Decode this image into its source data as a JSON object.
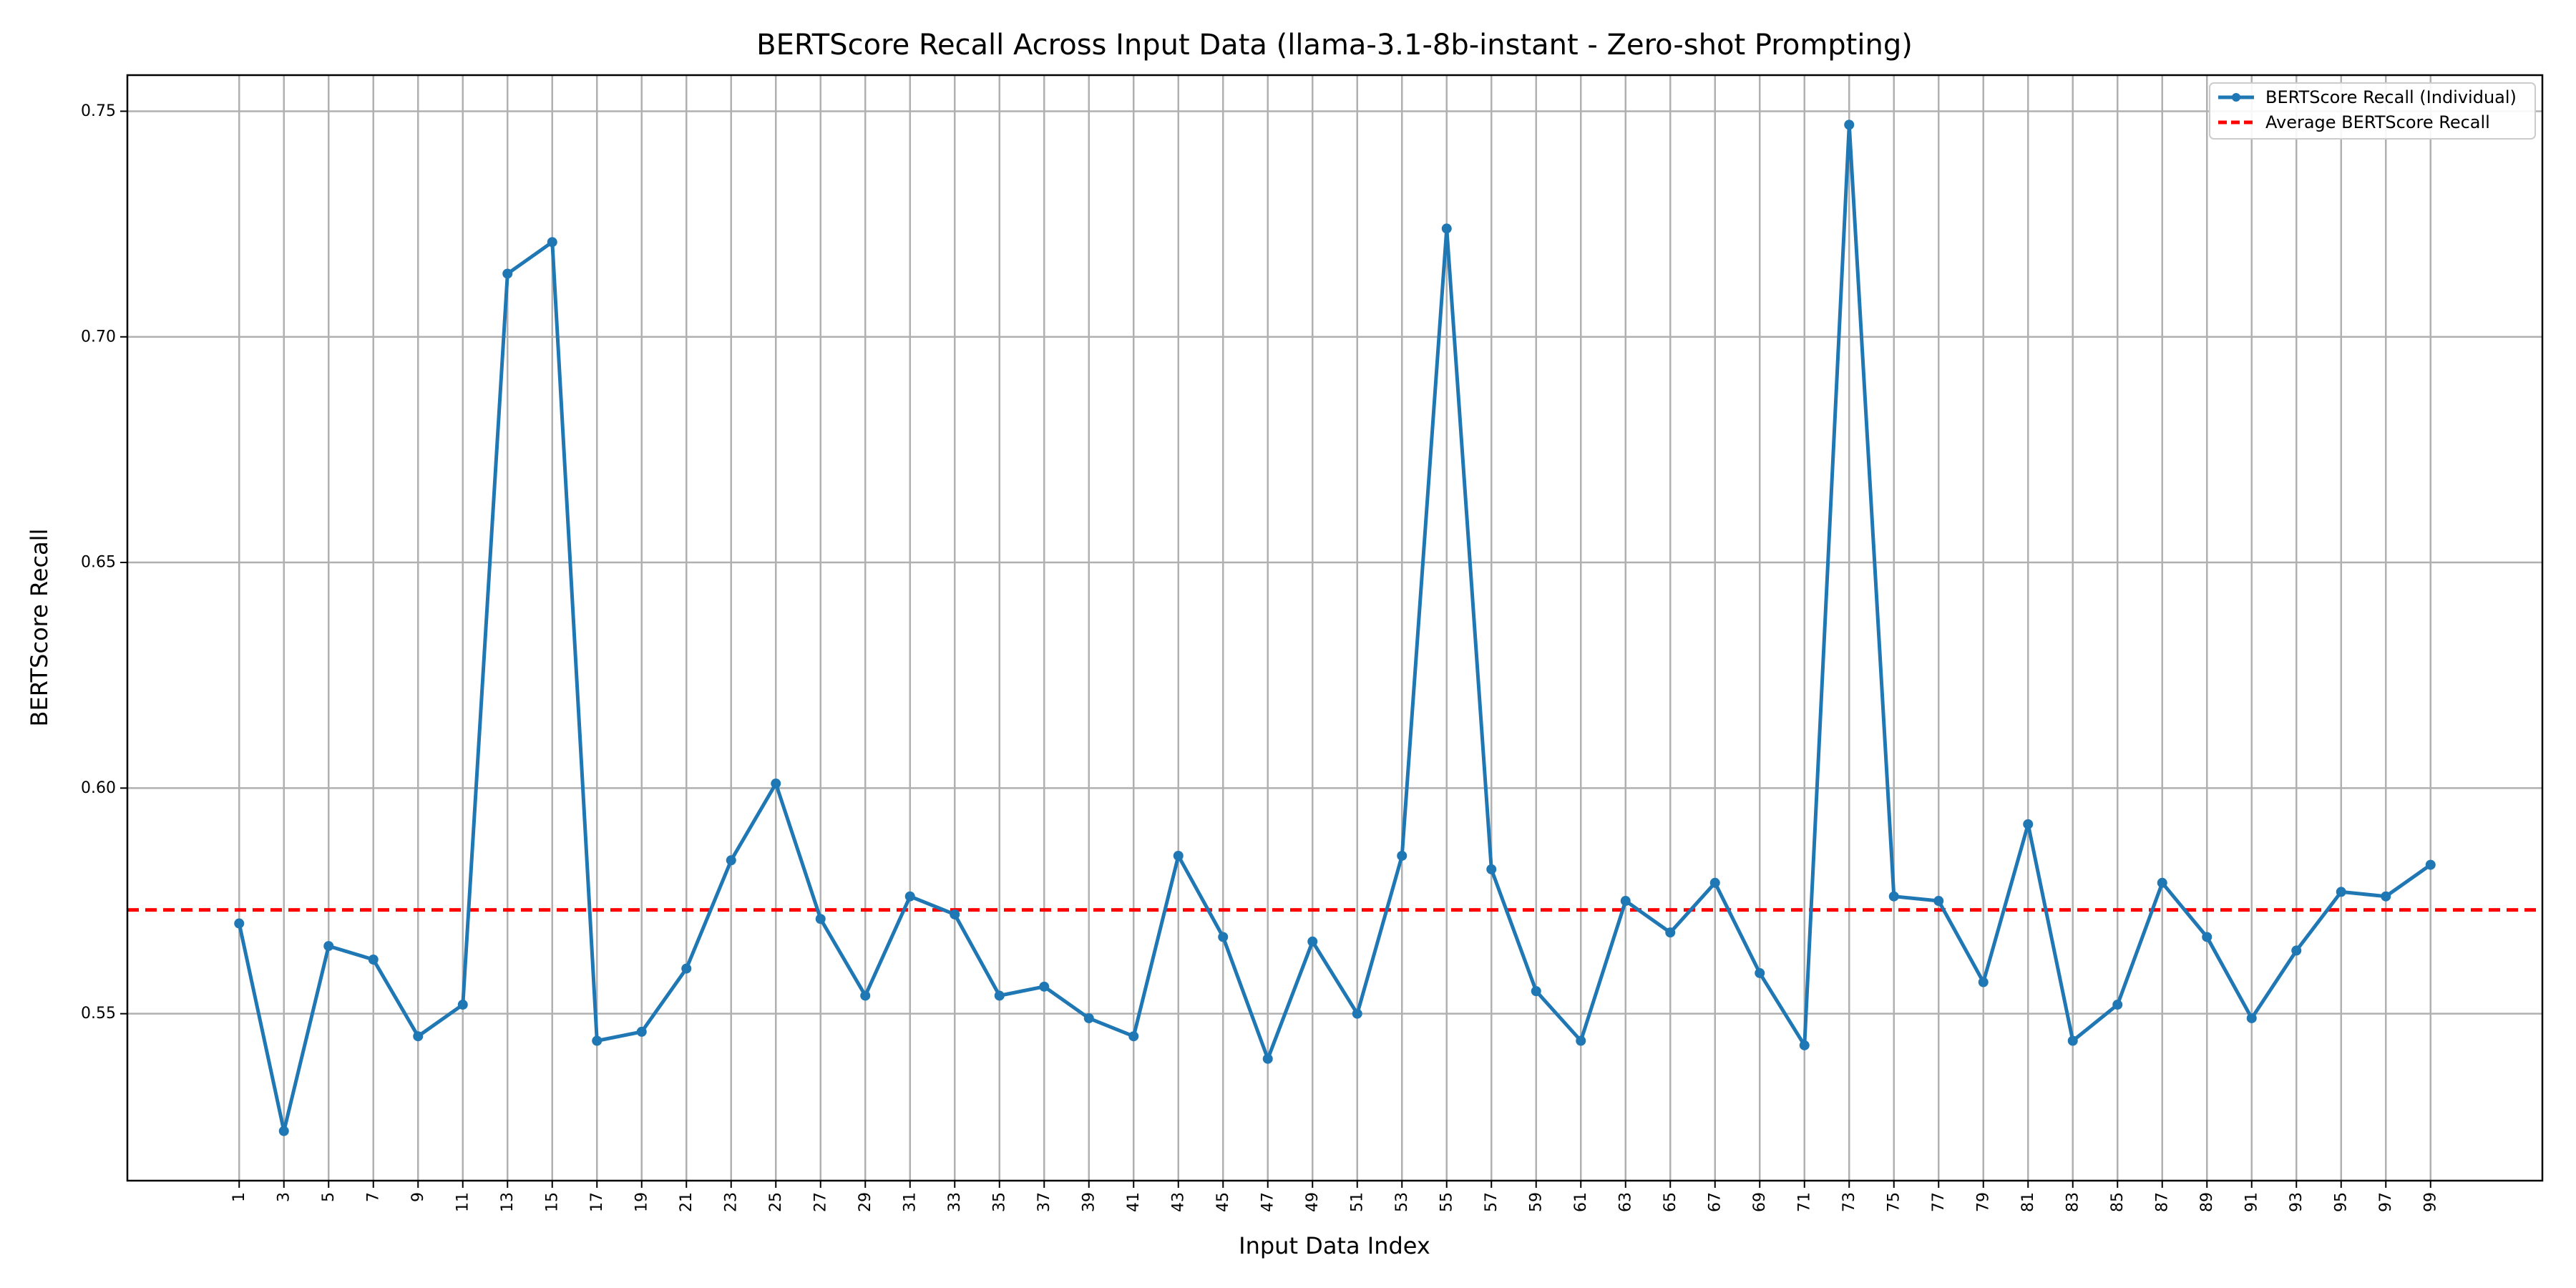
{
  "chart_data": {
    "type": "line",
    "title": "BERTScore Recall Across Input Data (llama-3.1-8b-instant - Zero-shot Prompting)",
    "xlabel": "Input Data Index",
    "ylabel": "BERTScore Recall",
    "x": [
      1,
      3,
      5,
      7,
      9,
      11,
      13,
      15,
      17,
      19,
      21,
      23,
      25,
      27,
      29,
      31,
      33,
      35,
      37,
      39,
      41,
      43,
      45,
      47,
      49,
      51,
      53,
      55,
      57,
      59,
      61,
      63,
      65,
      67,
      69,
      71,
      73,
      75,
      77,
      79,
      81,
      83,
      85,
      87,
      89,
      91,
      93,
      95,
      97,
      99
    ],
    "x_tick_labels": [
      "1",
      "3",
      "5",
      "7",
      "9",
      "11",
      "13",
      "15",
      "17",
      "19",
      "21",
      "23",
      "25",
      "27",
      "29",
      "31",
      "33",
      "35",
      "37",
      "39",
      "41",
      "43",
      "45",
      "47",
      "49",
      "51",
      "53",
      "55",
      "57",
      "59",
      "61",
      "63",
      "65",
      "67",
      "69",
      "71",
      "73",
      "75",
      "77",
      "79",
      "81",
      "83",
      "85",
      "87",
      "89",
      "91",
      "93",
      "95",
      "97",
      "99"
    ],
    "xlim": [
      -4,
      104
    ],
    "y_ticks": [
      0.55,
      0.6,
      0.65,
      0.7,
      0.75
    ],
    "y_tick_labels": [
      "0.55",
      "0.60",
      "0.65",
      "0.70",
      "0.75"
    ],
    "ylim": [
      0.513,
      0.758
    ],
    "grid": true,
    "legend_position": "top-right",
    "series": [
      {
        "name": "BERTScore Recall (Individual)",
        "style": "solid-markers",
        "color": "#1f77b4",
        "values": [
          0.57,
          0.524,
          0.565,
          0.562,
          0.545,
          0.552,
          0.714,
          0.721,
          0.544,
          0.546,
          0.56,
          0.584,
          0.601,
          0.571,
          0.554,
          0.576,
          0.572,
          0.554,
          0.556,
          0.549,
          0.545,
          0.585,
          0.567,
          0.54,
          0.566,
          0.55,
          0.585,
          0.724,
          0.582,
          0.555,
          0.544,
          0.575,
          0.568,
          0.579,
          0.559,
          0.543,
          0.747,
          0.576,
          0.575,
          0.557,
          0.592,
          0.544,
          0.552,
          0.579,
          0.567,
          0.549,
          0.564,
          0.577,
          0.576,
          0.583
        ]
      },
      {
        "name": "Average BERTScore Recall",
        "style": "dashed",
        "color": "#ff0000",
        "value": 0.573
      }
    ]
  }
}
